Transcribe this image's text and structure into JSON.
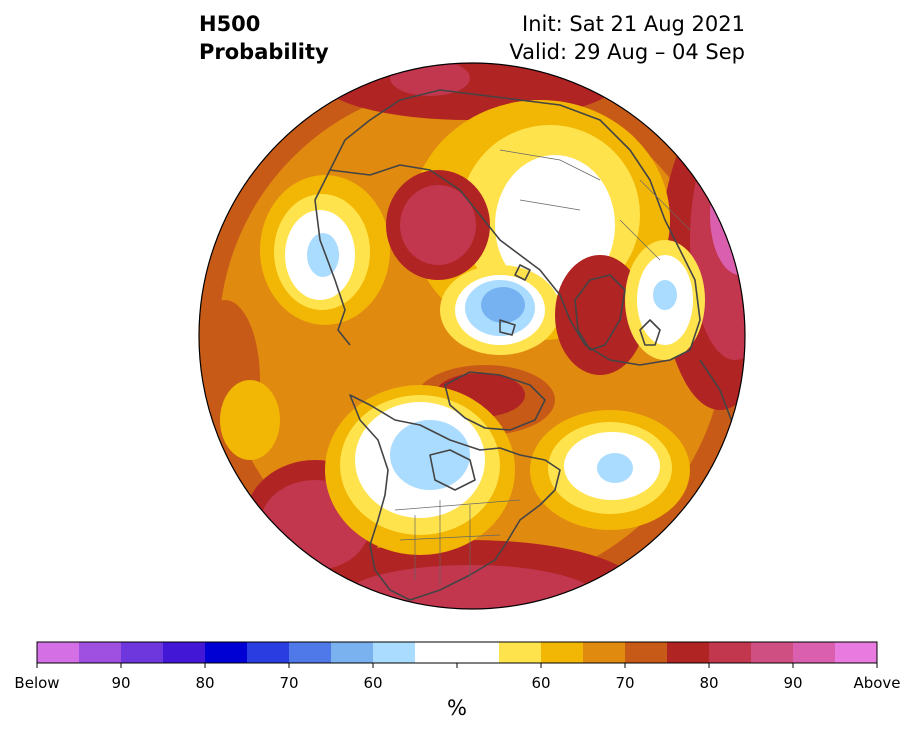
{
  "title": {
    "variable": "H500",
    "product": "Probability",
    "init": "Init: Sat 21 Aug 2021",
    "valid": "Valid: 29 Aug – 04 Sep"
  },
  "map": {
    "projection": "north-polar-stereographic",
    "fill_colors": {
      "above_50": "#ffffff",
      "above_55": "#ffe34d",
      "above_60": "#f2b705",
      "above_65": "#e08a10",
      "above_70": "#c85a17",
      "above_75": "#b02424",
      "above_80": "#c2364e",
      "above_90": "#cf4f82",
      "above_max": "#e06cc8",
      "below_55": "#aadcff",
      "below_60": "#76b2f2",
      "below_65": "#4d78e6"
    }
  },
  "colorbar": {
    "colors": [
      "#d56fe6",
      "#a050e0",
      "#6e37de",
      "#4317d6",
      "#0000d4",
      "#2a3de0",
      "#4f78e8",
      "#7ab2f0",
      "#aadcff",
      "#ffffff",
      "#ffffff",
      "#ffe34d",
      "#f2b705",
      "#e08a10",
      "#c85a17",
      "#b02424",
      "#c2364e",
      "#cf4f82",
      "#da5fae",
      "#e87ae0"
    ],
    "tick_labels": [
      "Below",
      "90",
      "80",
      "70",
      "60",
      "60",
      "70",
      "80",
      "90",
      "Above"
    ],
    "units": "%"
  }
}
